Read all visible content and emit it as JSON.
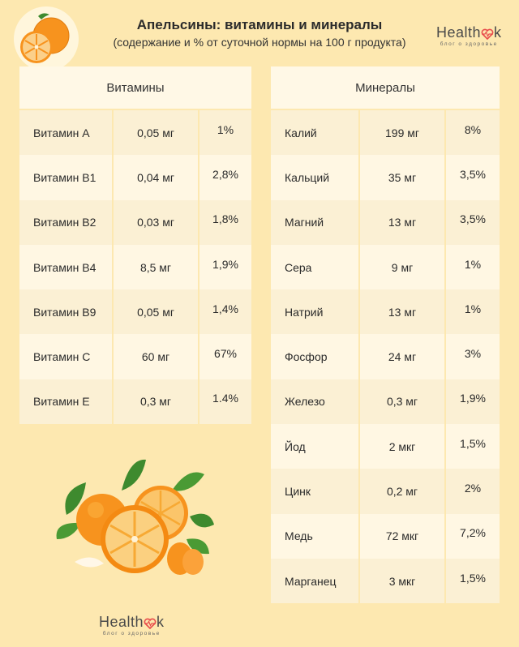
{
  "header": {
    "title": "Апельсины: витамины и минералы",
    "subtitle": "(содержание и % от суточной нормы на 100 г продукта)"
  },
  "brand": {
    "word": "Health",
    "word_suffix": "k",
    "tagline": "блог о здоровье"
  },
  "vitamins": {
    "header": "Витамины",
    "rows": [
      {
        "name": "Витамин А",
        "amount": "0,05 мг",
        "percent": "1%"
      },
      {
        "name": "Витамин B1",
        "amount": "0,04 мг",
        "percent": "2,8%"
      },
      {
        "name": "Витамин B2",
        "amount": "0,03 мг",
        "percent": "1,8%"
      },
      {
        "name": "Витамин B4",
        "amount": "8,5 мг",
        "percent": "1,9%"
      },
      {
        "name": "Витамин B9",
        "amount": "0,05 мг",
        "percent": "1,4%"
      },
      {
        "name": "Витамин C",
        "amount": "60 мг",
        "percent": "67%"
      },
      {
        "name": "Витамин E",
        "amount": "0,3 мг",
        "percent": "1.4%"
      }
    ]
  },
  "minerals": {
    "header": "Минералы",
    "rows": [
      {
        "name": "Калий",
        "amount": "199 мг",
        "percent": "8%"
      },
      {
        "name": "Кальций",
        "amount": "35 мг",
        "percent": "3,5%"
      },
      {
        "name": "Магний",
        "amount": "13 мг",
        "percent": "3,5%"
      },
      {
        "name": "Сера",
        "amount": "9 мг",
        "percent": "1%"
      },
      {
        "name": "Натрий",
        "amount": "13 мг",
        "percent": "1%"
      },
      {
        "name": "Фосфор",
        "amount": "24 мг",
        "percent": "3%"
      },
      {
        "name": "Железо",
        "amount": "0,3 мг",
        "percent": "1,9%"
      },
      {
        "name": "Йод",
        "amount": "2 мкг",
        "percent": "1,5%"
      },
      {
        "name": "Цинк",
        "amount": "0,2 мг",
        "percent": "2%"
      },
      {
        "name": "Медь",
        "amount": "72 мкг",
        "percent": "7,2%"
      },
      {
        "name": "Марганец",
        "amount": "3 мкг",
        "percent": "1,5%"
      }
    ]
  },
  "icons": {
    "top_logo": "orange-icon",
    "brand_heart": "heart-pulse-icon",
    "illustration": "oranges-illustration"
  },
  "colors": {
    "background": "#fde8b0",
    "orange": "#f7931e",
    "leaf": "#3e8a2e"
  }
}
